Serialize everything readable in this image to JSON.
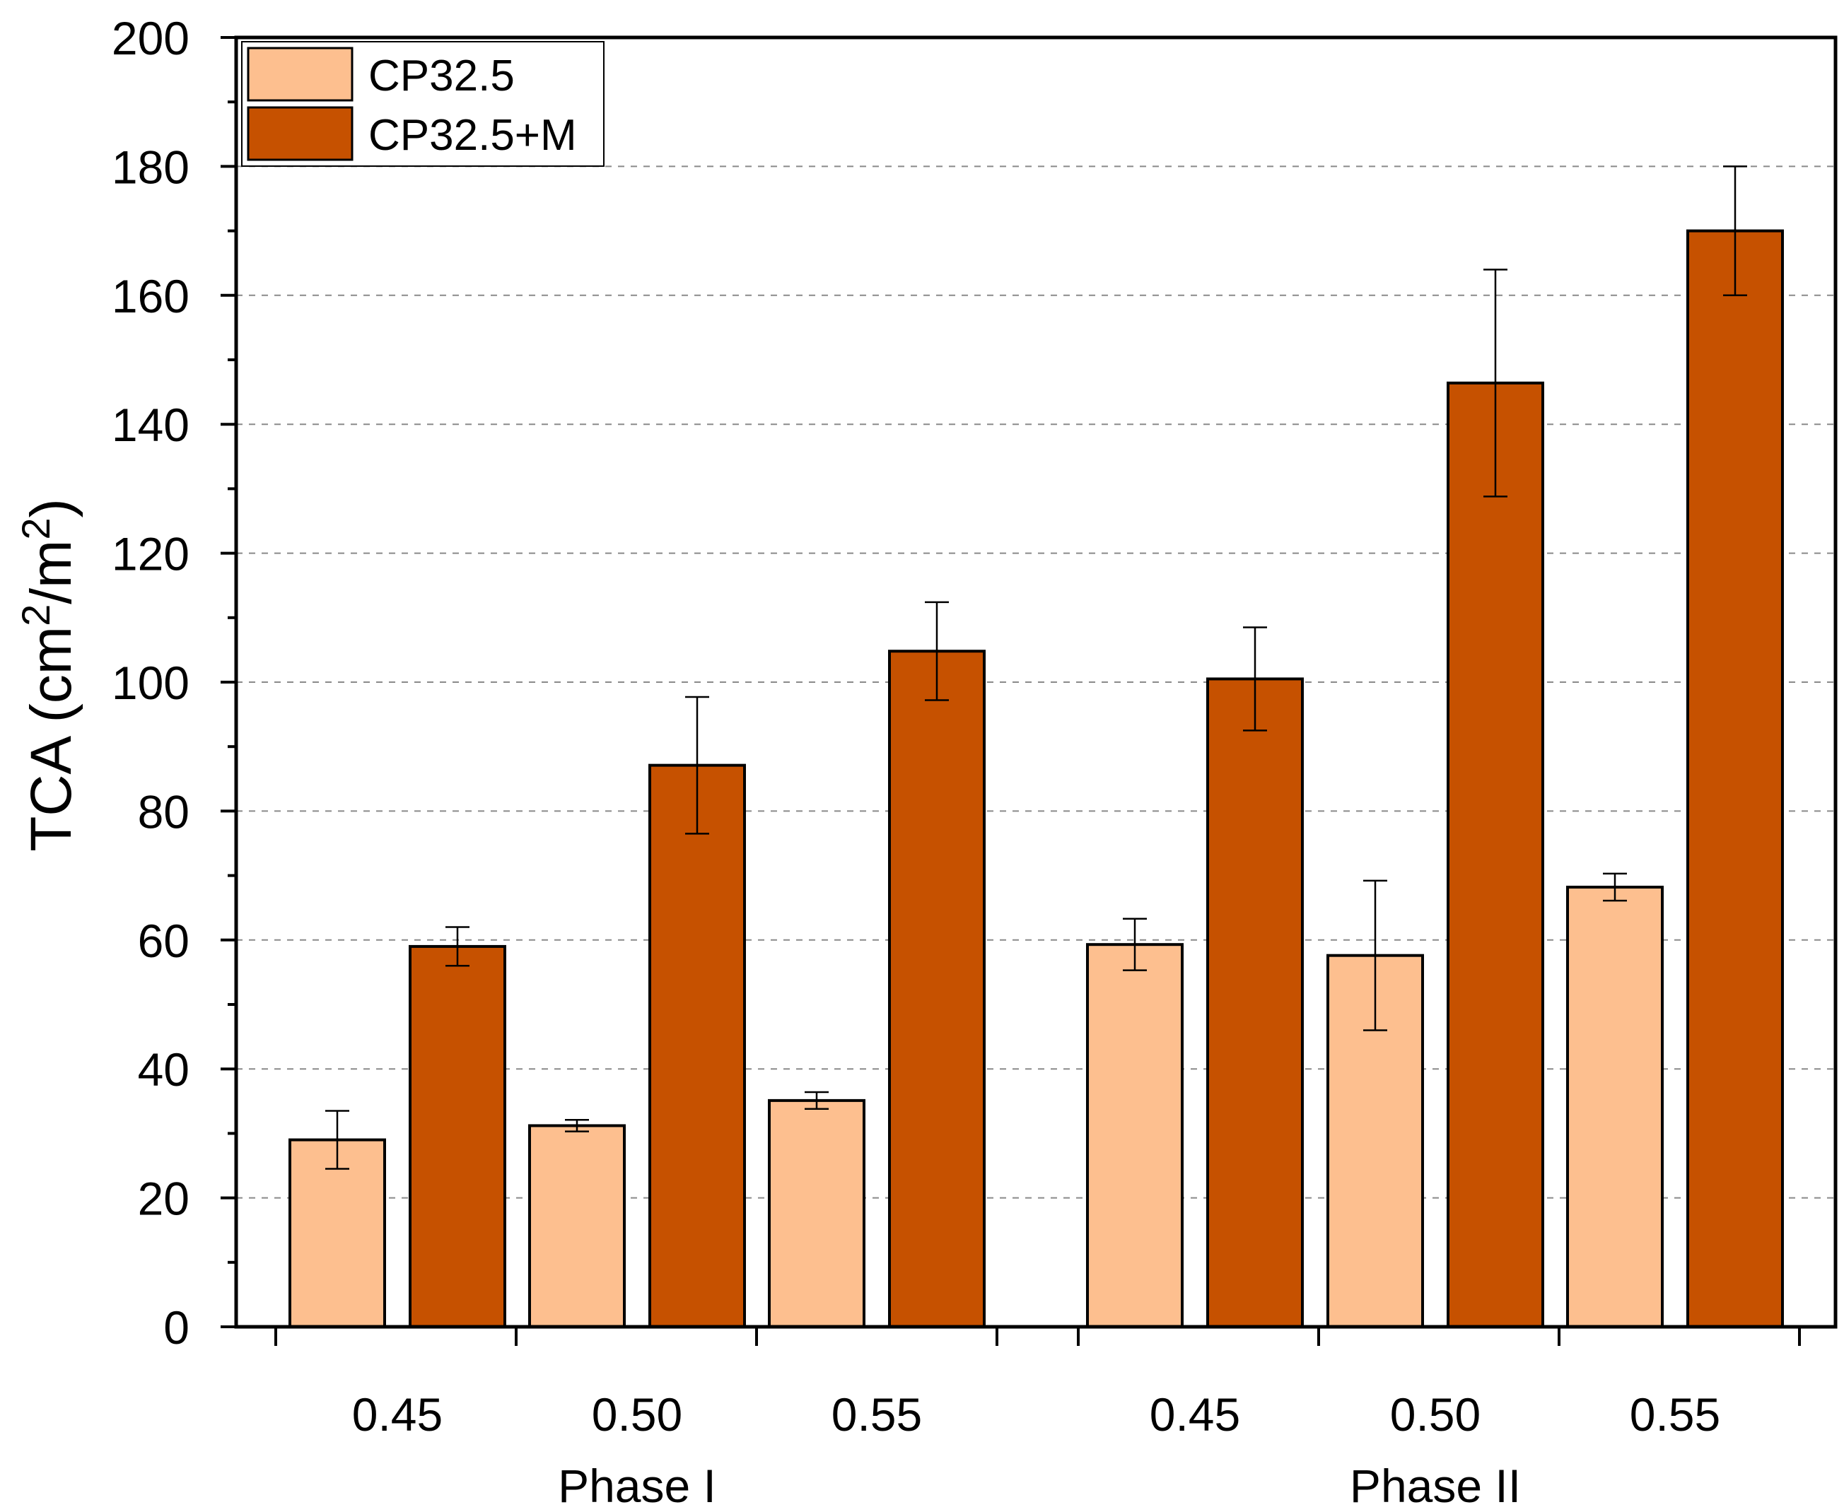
{
  "chart_data": {
    "type": "bar",
    "title": "",
    "ylabel": "TCA (cm²/m²)",
    "ylabel_parts": {
      "prefix": "TCA (cm",
      "sup1": "2",
      "mid": "/m",
      "sup2": "2",
      "suffix": ")"
    },
    "xlabel": "",
    "ylim": [
      0,
      200
    ],
    "yticks": [
      0,
      20,
      40,
      60,
      80,
      100,
      120,
      140,
      160,
      180,
      200
    ],
    "grid": "horizontal-dashed",
    "legend_position": "top-left",
    "groups": [
      {
        "name": "Phase I",
        "categories": [
          "0.45",
          "0.50",
          "0.55"
        ]
      },
      {
        "name": "Phase II",
        "categories": [
          "0.45",
          "0.50",
          "0.55"
        ]
      }
    ],
    "series": [
      {
        "name": "CP32.5",
        "color": "#FDBF8F",
        "values": [
          29,
          31.2,
          35.1,
          59.3,
          57.6,
          68.2
        ],
        "errors": [
          4.5,
          0.9,
          1.3,
          4.0,
          11.6,
          2.1
        ]
      },
      {
        "name": "CP32.5+M",
        "color": "#C65100",
        "values": [
          59,
          87.1,
          104.8,
          100.5,
          146.4,
          170
        ],
        "errors": [
          3.0,
          10.6,
          7.6,
          8.0,
          17.6,
          10.0
        ]
      }
    ]
  }
}
